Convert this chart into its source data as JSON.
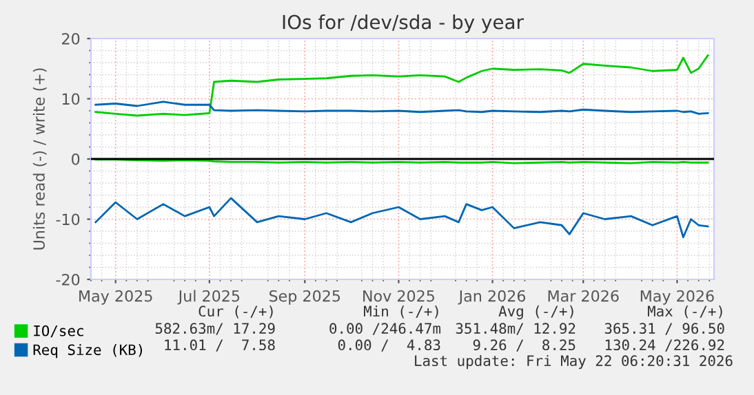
{
  "chart_data": {
    "type": "line",
    "title": "IOs for /dev/sda - by year",
    "ylabel": "Units read (-) / write (+)",
    "x": [
      "2025-04-18",
      "2025-05-01",
      "2025-05-15",
      "2025-06-01",
      "2025-06-15",
      "2025-07-01",
      "2025-07-04",
      "2025-07-15",
      "2025-08-01",
      "2025-08-15",
      "2025-09-01",
      "2025-09-15",
      "2025-10-01",
      "2025-10-15",
      "2025-11-01",
      "2025-11-15",
      "2025-12-01",
      "2025-12-10",
      "2025-12-15",
      "2025-12-25",
      "2026-01-01",
      "2026-01-15",
      "2026-02-01",
      "2026-02-15",
      "2026-02-20",
      "2026-03-01",
      "2026-03-15",
      "2026-04-01",
      "2026-04-15",
      "2026-05-01",
      "2026-05-05",
      "2026-05-10",
      "2026-05-15",
      "2026-05-21"
    ],
    "series": [
      {
        "name": "IO/sec",
        "color": "#00cc00",
        "values": [
          7.8,
          7.5,
          7.2,
          7.5,
          7.3,
          7.6,
          12.8,
          13.0,
          12.8,
          13.2,
          13.3,
          13.4,
          13.8,
          13.9,
          13.7,
          13.9,
          13.7,
          12.8,
          13.5,
          14.6,
          15.0,
          14.8,
          14.9,
          14.7,
          14.3,
          15.8,
          15.5,
          15.2,
          14.6,
          14.8,
          16.8,
          14.3,
          15.0,
          17.2
        ]
      },
      {
        "name": "Req Size (KB)",
        "color": "#0066b3",
        "values": [
          9.0,
          9.2,
          8.8,
          9.5,
          9.0,
          9.0,
          8.1,
          8.0,
          8.1,
          8.0,
          7.9,
          8.0,
          8.0,
          7.9,
          8.0,
          7.8,
          8.0,
          8.1,
          7.9,
          7.8,
          8.0,
          7.9,
          7.8,
          8.0,
          7.9,
          8.2,
          8.0,
          7.8,
          7.9,
          8.0,
          7.8,
          7.9,
          7.5,
          7.6
        ]
      },
      {
        "color": "#00cc00",
        "values": [
          -0.1,
          -0.1,
          -0.2,
          -0.3,
          -0.2,
          -0.3,
          -0.4,
          -0.5,
          -0.5,
          -0.6,
          -0.5,
          -0.6,
          -0.5,
          -0.6,
          -0.5,
          -0.6,
          -0.5,
          -0.6,
          -0.6,
          -0.6,
          -0.5,
          -0.7,
          -0.6,
          -0.5,
          -0.6,
          -0.5,
          -0.6,
          -0.7,
          -0.5,
          -0.6,
          -0.5,
          -0.6,
          -0.6,
          -0.6
        ]
      },
      {
        "color": "#0066b3",
        "values": [
          -10.5,
          -7.2,
          -10.0,
          -7.5,
          -9.5,
          -8.0,
          -9.5,
          -6.5,
          -10.5,
          -9.5,
          -10.0,
          -9.0,
          -10.5,
          -9.0,
          -8.0,
          -10.0,
          -9.5,
          -10.5,
          -7.5,
          -8.5,
          -8.0,
          -11.5,
          -10.5,
          -11.0,
          -12.5,
          -9.0,
          -10.0,
          -9.5,
          -11.0,
          -9.5,
          -13.0,
          -10.0,
          -11.0,
          -11.2
        ]
      }
    ],
    "xlim": [
      "2025-04-15",
      "2026-05-25"
    ],
    "xticks": [
      {
        "value": "2025-05-01",
        "label": "May 2025"
      },
      {
        "value": "2025-07-01",
        "label": "Jul 2025"
      },
      {
        "value": "2025-09-01",
        "label": "Sep 2025"
      },
      {
        "value": "2025-11-01",
        "label": "Nov 2025"
      },
      {
        "value": "2026-01-01",
        "label": "Jan 2026"
      },
      {
        "value": "2026-03-01",
        "label": "Mar 2026"
      },
      {
        "value": "2026-05-01",
        "label": "May 2026"
      }
    ],
    "ylim": [
      -20,
      20
    ],
    "yticks": [
      -20,
      -10,
      0,
      10,
      20
    ],
    "ref_lines": [
      {
        "axis": "y",
        "value": 0,
        "color": "#000000"
      }
    ],
    "grid": true,
    "legend": "bottom",
    "marker": "none",
    "line_style": "solid",
    "annotations": [
      "Cur (-/+)",
      "Min (-/+)",
      "Avg (-/+)",
      "Max (-/+)",
      "582.63m/ 17.29",
      "0.00 /246.47m",
      "351.48m/ 12.92",
      "365.31 / 96.50",
      "11.01 /  7.58",
      "0.00 /  4.83",
      "9.26 /  8.25",
      "130.24 /226.92",
      "Last update: Fri May 22 06:20:31 2026"
    ]
  }
}
